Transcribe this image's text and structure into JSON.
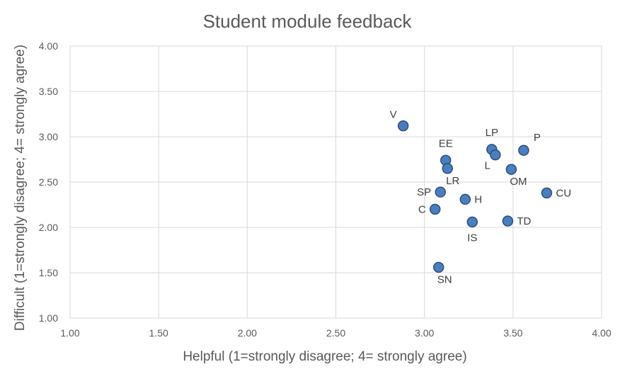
{
  "chart_data": {
    "type": "scatter",
    "title": "Student module feedback",
    "xlabel": "Helpful (1=strongly disagree; 4= strongly agree)",
    "ylabel": "Difficult (1=strongly disagree; 4= strongly agree)",
    "xlim": [
      1.0,
      4.0
    ],
    "ylim": [
      1.0,
      4.0
    ],
    "x_ticks": [
      "1.00",
      "1.50",
      "2.00",
      "2.50",
      "3.00",
      "3.50",
      "4.00"
    ],
    "y_ticks": [
      "1.00",
      "1.50",
      "2.00",
      "2.50",
      "3.00",
      "3.50",
      "4.00"
    ],
    "grid": true,
    "legend": "none",
    "marker_color": "#4a7ebf",
    "marker_edge_color": "#2f4f73",
    "points": [
      {
        "label": "V",
        "x": 2.88,
        "y": 3.12,
        "label_pos": "top-left"
      },
      {
        "label": "EE",
        "x": 3.12,
        "y": 2.74,
        "label_pos": "top"
      },
      {
        "label": "LR",
        "x": 3.13,
        "y": 2.65,
        "label_pos": "bottom-right"
      },
      {
        "label": "LP",
        "x": 3.38,
        "y": 2.86,
        "label_pos": "top"
      },
      {
        "label": "L",
        "x": 3.4,
        "y": 2.8,
        "label_pos": "bottom-left"
      },
      {
        "label": "P",
        "x": 3.56,
        "y": 2.85,
        "label_pos": "top-right"
      },
      {
        "label": "OM",
        "x": 3.49,
        "y": 2.64,
        "label_pos": "bottom-right"
      },
      {
        "label": "SP",
        "x": 3.09,
        "y": 2.39,
        "label_pos": "left"
      },
      {
        "label": "H",
        "x": 3.23,
        "y": 2.31,
        "label_pos": "right"
      },
      {
        "label": "C",
        "x": 3.06,
        "y": 2.2,
        "label_pos": "left"
      },
      {
        "label": "CU",
        "x": 3.69,
        "y": 2.38,
        "label_pos": "right"
      },
      {
        "label": "IS",
        "x": 3.27,
        "y": 2.06,
        "label_pos": "bottom"
      },
      {
        "label": "TD",
        "x": 3.47,
        "y": 2.07,
        "label_pos": "right"
      },
      {
        "label": "SN",
        "x": 3.08,
        "y": 1.56,
        "label_pos": "bottom-right"
      }
    ]
  }
}
